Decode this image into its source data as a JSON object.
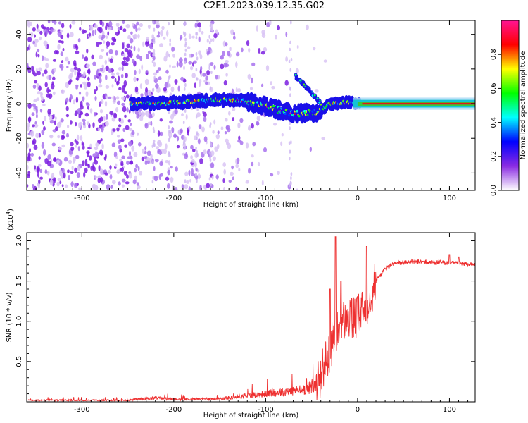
{
  "title": "C2E1.2023.039.12.35.G02",
  "chart_data": [
    {
      "type": "heatmap",
      "xlabel": "Height of straight line (km)",
      "ylabel": "Frequency (Hz)",
      "xlim": [
        -360,
        128
      ],
      "ylim": [
        -50,
        48
      ],
      "x_ticks": [
        -300,
        -200,
        -100,
        0,
        100
      ],
      "y_ticks": [
        -40,
        -20,
        0,
        20,
        40
      ],
      "colorbar": {
        "label": "Normalized spectral amplitude",
        "range": [
          0,
          1
        ],
        "ticks": [
          0.0,
          0.2,
          0.4,
          0.6,
          0.8
        ],
        "colors": [
          "#ffffff",
          "#8a2be2",
          "#0000ff",
          "#00ffff",
          "#00ff00",
          "#ffff00",
          "#ff0000",
          "#ff1493"
        ]
      },
      "trace": [
        {
          "x": -245,
          "f": 0
        },
        {
          "x": -200,
          "f": 0.5
        },
        {
          "x": -160,
          "f": 2
        },
        {
          "x": -130,
          "f": 2
        },
        {
          "x": -110,
          "f": 0
        },
        {
          "x": -90,
          "f": -3
        },
        {
          "x": -70,
          "f": -6
        },
        {
          "x": -45,
          "f": -5
        },
        {
          "x": -30,
          "f": 0
        },
        {
          "x": -10,
          "f": 1
        },
        {
          "x": 0,
          "f": 0
        },
        {
          "x": 128,
          "f": 0
        }
      ],
      "side_branch": [
        {
          "x": -68,
          "f": 16
        },
        {
          "x": -60,
          "f": 12
        },
        {
          "x": -50,
          "f": 6
        },
        {
          "x": -40,
          "f": 0
        }
      ]
    },
    {
      "type": "line",
      "xlabel": "Height of straight line (km)",
      "ylabel": "SNR (10 * v/v)",
      "ylabel_scale": "(x10",
      "ylabel_exponent": "4",
      "ylabel_close": ")",
      "xlim": [
        -360,
        128
      ],
      "ylim": [
        0,
        2.1
      ],
      "x_ticks": [
        -300,
        -200,
        -100,
        0,
        100
      ],
      "y_ticks": [
        0.5,
        1.0,
        1.5,
        2.0
      ],
      "series_color": "#ee3030",
      "envelope": [
        {
          "x": -360,
          "y": 0.02
        },
        {
          "x": -250,
          "y": 0.02
        },
        {
          "x": -220,
          "y": 0.05
        },
        {
          "x": -200,
          "y": 0.03
        },
        {
          "x": -150,
          "y": 0.04
        },
        {
          "x": -100,
          "y": 0.1
        },
        {
          "x": -60,
          "y": 0.15
        },
        {
          "x": -45,
          "y": 0.2
        },
        {
          "x": -35,
          "y": 0.5
        },
        {
          "x": -25,
          "y": 0.8
        },
        {
          "x": -15,
          "y": 1.0
        },
        {
          "x": 0,
          "y": 1.05
        },
        {
          "x": 10,
          "y": 1.2
        },
        {
          "x": 20,
          "y": 1.5
        },
        {
          "x": 30,
          "y": 1.65
        },
        {
          "x": 40,
          "y": 1.72
        },
        {
          "x": 60,
          "y": 1.74
        },
        {
          "x": 90,
          "y": 1.73
        },
        {
          "x": 128,
          "y": 1.7
        }
      ],
      "spikes": [
        {
          "x": -30,
          "y": 1.4
        },
        {
          "x": -24,
          "y": 2.05
        },
        {
          "x": -18,
          "y": 1.5
        },
        {
          "x": 10,
          "y": 1.93
        },
        {
          "x": 100,
          "y": 1.83
        },
        {
          "x": 110,
          "y": 1.8
        }
      ]
    }
  ]
}
